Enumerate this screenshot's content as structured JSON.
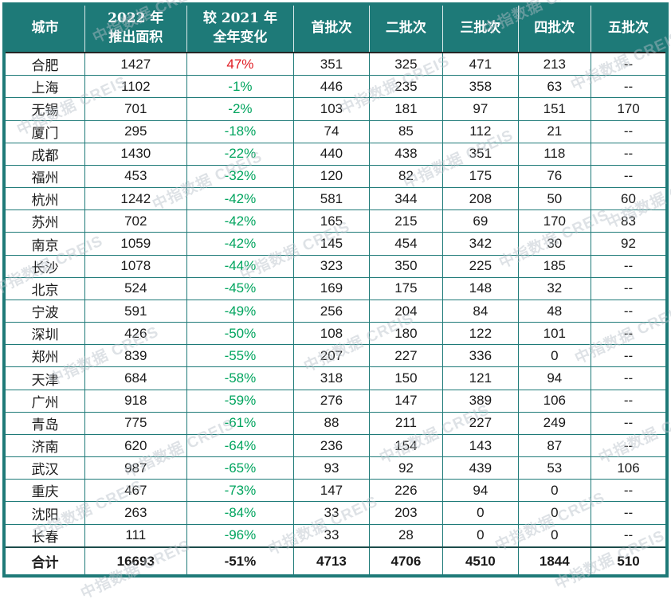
{
  "colors": {
    "header_teal": "#1e7a78",
    "positive_red": "#e01b22",
    "negative_green": "#00a45e",
    "text_black": "#1a1a1a",
    "watermark_gray": "#b7c0c8"
  },
  "watermark": {
    "text": "中指数据 CREIS"
  },
  "chart_data": {
    "type": "table",
    "columns": [
      "城市",
      "2022 年推出面积",
      "较 2021 年全年变化",
      "首批次",
      "二批次",
      "三批次",
      "四批次",
      "五批次"
    ],
    "columns_display": [
      "城市",
      "2022 年\n推出面积",
      "较 2021 年\n全年变化",
      "首批次",
      "二批次",
      "三批次",
      "四批次",
      "五批次"
    ],
    "rows": [
      [
        "合肥",
        "1427",
        "47%",
        "351",
        "325",
        "471",
        "213",
        "--"
      ],
      [
        "上海",
        "1102",
        "-1%",
        "446",
        "235",
        "358",
        "63",
        "--"
      ],
      [
        "无锡",
        "701",
        "-2%",
        "103",
        "181",
        "97",
        "151",
        "170"
      ],
      [
        "厦门",
        "295",
        "-18%",
        "74",
        "85",
        "112",
        "21",
        "--"
      ],
      [
        "成都",
        "1430",
        "-22%",
        "440",
        "438",
        "351",
        "118",
        "--"
      ],
      [
        "福州",
        "453",
        "-32%",
        "120",
        "82",
        "175",
        "76",
        "--"
      ],
      [
        "杭州",
        "1242",
        "-42%",
        "581",
        "344",
        "208",
        "50",
        "60"
      ],
      [
        "苏州",
        "702",
        "-42%",
        "165",
        "215",
        "69",
        "170",
        "83"
      ],
      [
        "南京",
        "1059",
        "-42%",
        "145",
        "454",
        "342",
        "30",
        "92"
      ],
      [
        "长沙",
        "1078",
        "-44%",
        "323",
        "350",
        "225",
        "185",
        "--"
      ],
      [
        "北京",
        "524",
        "-45%",
        "169",
        "175",
        "148",
        "32",
        "--"
      ],
      [
        "宁波",
        "591",
        "-49%",
        "256",
        "204",
        "84",
        "48",
        "--"
      ],
      [
        "深圳",
        "426",
        "-50%",
        "108",
        "180",
        "122",
        "101",
        "--"
      ],
      [
        "郑州",
        "839",
        "-55%",
        "207",
        "227",
        "336",
        "0",
        "--"
      ],
      [
        "天津",
        "684",
        "-58%",
        "318",
        "150",
        "121",
        "94",
        "--"
      ],
      [
        "广州",
        "918",
        "-59%",
        "276",
        "147",
        "389",
        "106",
        "--"
      ],
      [
        "青岛",
        "775",
        "-61%",
        "88",
        "211",
        "227",
        "249",
        "--"
      ],
      [
        "济南",
        "620",
        "-64%",
        "236",
        "154",
        "143",
        "87",
        "--"
      ],
      [
        "武汉",
        "987",
        "-65%",
        "93",
        "92",
        "439",
        "53",
        "106"
      ],
      [
        "重庆",
        "467",
        "-73%",
        "147",
        "226",
        "94",
        "0",
        "--"
      ],
      [
        "沈阳",
        "263",
        "-84%",
        "33",
        "203",
        "0",
        "0",
        "--"
      ],
      [
        "长春",
        "111",
        "-96%",
        "33",
        "28",
        "0",
        "0",
        "--"
      ]
    ],
    "total_row": [
      "合计",
      "16693",
      "-51%",
      "4713",
      "4706",
      "4510",
      "1844",
      "510"
    ]
  }
}
